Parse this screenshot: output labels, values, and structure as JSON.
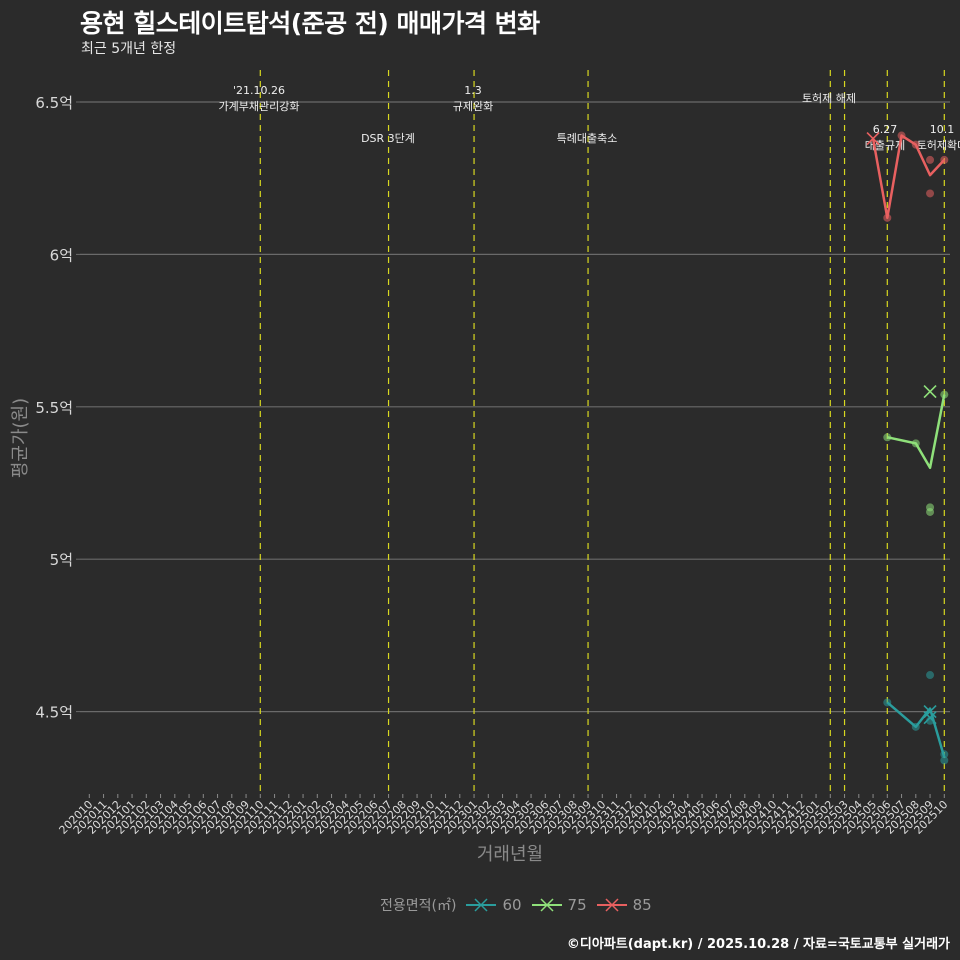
{
  "title": "용현 힐스테이트탑석(준공 전) 매매가격 변화",
  "subtitle": "최근 5개년 한정",
  "credit": "©디아파트(dapt.kr) / 2025.10.28 / 자료=국토교통부 실거래가",
  "colors": {
    "background": "#2b2b2b",
    "grid": "#6a6a6a",
    "event_line": "#d8d820",
    "s60": "#2a9d9d",
    "s75": "#8fe07a",
    "s85": "#e86060"
  },
  "chart_data": {
    "type": "line",
    "title": "용현 힐스테이트탑석(준공 전) 매매가격 변화",
    "subtitle": "최근 5개년 한정",
    "xlabel": "거래년월",
    "ylabel": "평균가(원)",
    "ylim": [
      4.22,
      6.6
    ],
    "y_unit": "억",
    "yticks": [
      4.5,
      5,
      5.5,
      6,
      6.5
    ],
    "ytick_labels": [
      "4.5억",
      "5억",
      "5.5억",
      "6억",
      "6.5억"
    ],
    "x_categories": [
      "202010",
      "202011",
      "202012",
      "202101",
      "202102",
      "202103",
      "202104",
      "202105",
      "202106",
      "202107",
      "202108",
      "202109",
      "202110",
      "202111",
      "202112",
      "202201",
      "202202",
      "202203",
      "202204",
      "202205",
      "202206",
      "202207",
      "202208",
      "202209",
      "202210",
      "202211",
      "202212",
      "202301",
      "202302",
      "202303",
      "202304",
      "202305",
      "202306",
      "202307",
      "202308",
      "202309",
      "202310",
      "202311",
      "202312",
      "202401",
      "202402",
      "202403",
      "202404",
      "202405",
      "202406",
      "202407",
      "202408",
      "202409",
      "202410",
      "202411",
      "202412",
      "202501",
      "202502",
      "202503",
      "202504",
      "202505",
      "202506",
      "202507",
      "202508",
      "202509",
      "202510"
    ],
    "legend_title": "전용면적(㎡)",
    "legend_position": "bottom",
    "grid": "horizontal major only",
    "series": [
      {
        "name": "60",
        "color": "#2a9d9d",
        "line": [
          [
            "202506",
            4.53
          ],
          [
            "202508",
            4.45
          ],
          [
            "202509",
            4.51
          ],
          [
            "202510",
            4.35
          ]
        ],
        "points": [
          [
            "202506",
            4.53
          ],
          [
            "202508",
            4.45
          ],
          [
            "202509",
            4.62
          ],
          [
            "202509",
            4.47
          ],
          [
            "202510",
            4.34
          ],
          [
            "202510",
            4.36
          ]
        ],
        "cross_points": [
          [
            "202509",
            4.5
          ],
          [
            "202509",
            4.48
          ]
        ]
      },
      {
        "name": "75",
        "color": "#8fe07a",
        "line": [
          [
            "202506",
            5.4
          ],
          [
            "202508",
            5.38
          ],
          [
            "202509",
            5.3
          ],
          [
            "202510",
            5.54
          ]
        ],
        "points": [
          [
            "202506",
            5.4
          ],
          [
            "202508",
            5.38
          ],
          [
            "202509",
            5.17
          ],
          [
            "202509",
            5.155
          ],
          [
            "202510",
            5.54
          ]
        ],
        "cross_points": [
          [
            "202509",
            5.55
          ]
        ]
      },
      {
        "name": "85",
        "color": "#e86060",
        "line": [
          [
            "202505",
            6.38
          ],
          [
            "202506",
            6.12
          ],
          [
            "202507",
            6.39
          ],
          [
            "202508",
            6.36
          ],
          [
            "202509",
            6.26
          ],
          [
            "202510",
            6.31
          ]
        ],
        "points": [
          [
            "202506",
            6.12
          ],
          [
            "202507",
            6.39
          ],
          [
            "202508",
            6.36
          ],
          [
            "202509",
            6.31
          ],
          [
            "202509",
            6.2
          ],
          [
            "202510",
            6.31
          ]
        ],
        "cross_points": [
          [
            "202505",
            6.38
          ]
        ]
      }
    ],
    "annotations": [
      {
        "x": "202110",
        "date": "'21.10.26",
        "label": "가계부채관리강화"
      },
      {
        "x": "202207",
        "date": "",
        "label": "DSR 3단계"
      },
      {
        "x": "202301",
        "date": "1.3",
        "label": "규제완화"
      },
      {
        "x": "202309",
        "date": "",
        "label": "특례대출축소"
      },
      {
        "x": "202502",
        "date": "",
        "label": "토허제 해제"
      },
      {
        "x": "202503",
        "date": "",
        "label": ""
      },
      {
        "x": "202506",
        "date": "6.27",
        "label": "대출규제"
      },
      {
        "x": "202510",
        "date": "10.1",
        "label": "토허제확대"
      }
    ]
  }
}
